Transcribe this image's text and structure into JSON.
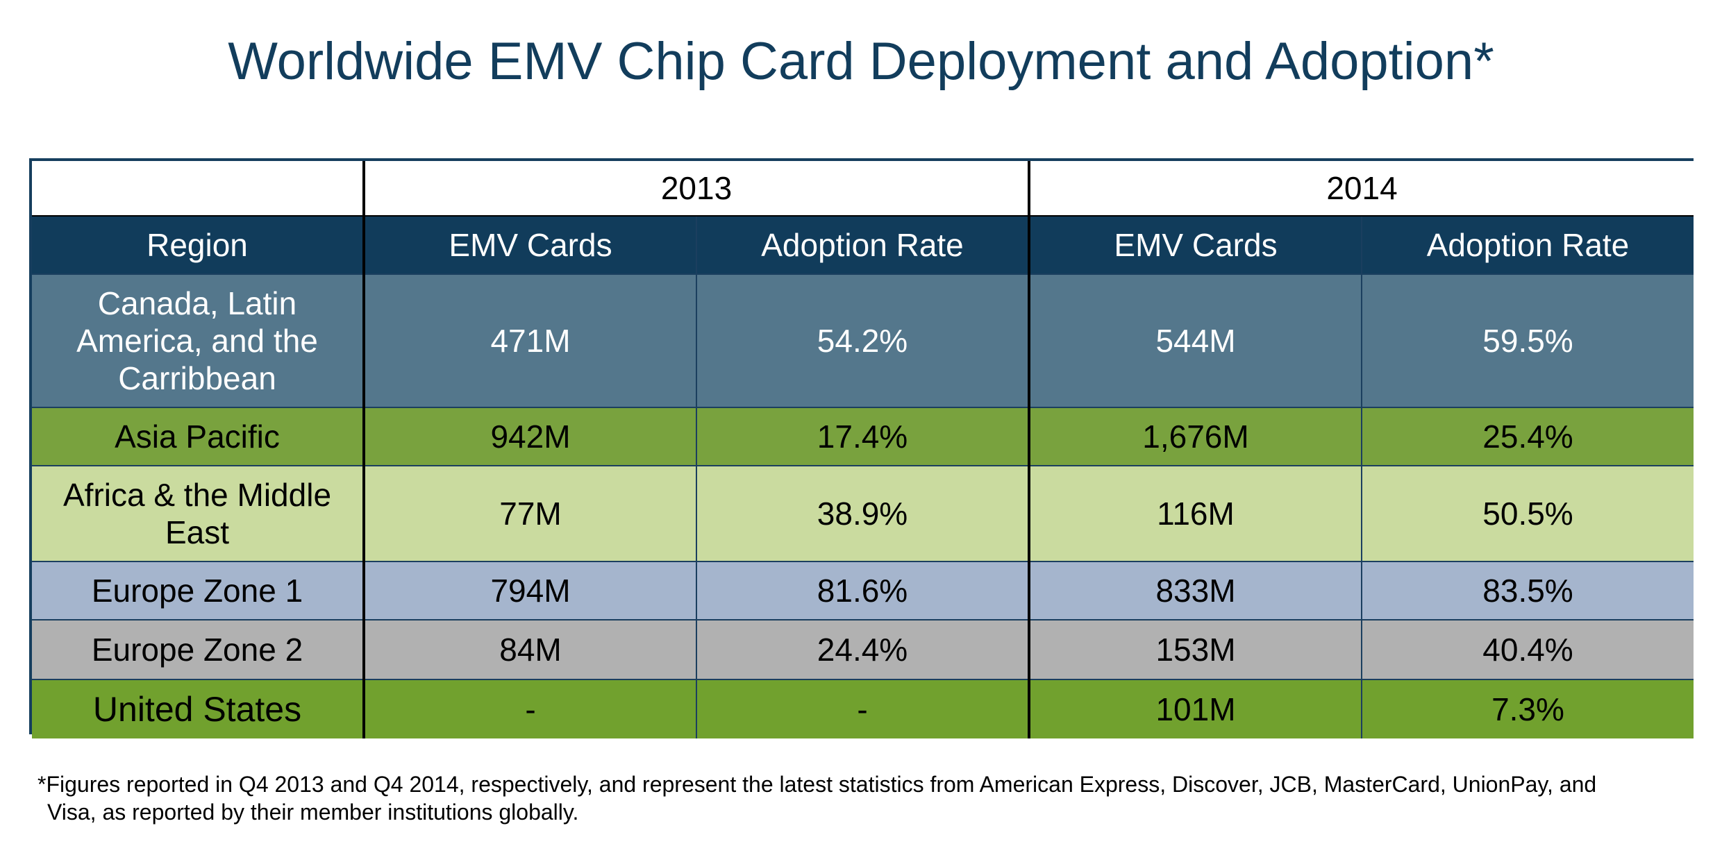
{
  "title": "Worldwide EMV Chip Card Deployment and Adoption*",
  "chart_data": {
    "type": "table",
    "title": "Worldwide EMV Chip Card Deployment and Adoption*",
    "years": [
      "2013",
      "2014"
    ],
    "columns": [
      "Region",
      "EMV Cards",
      "Adoption Rate",
      "EMV Cards",
      "Adoption Rate"
    ],
    "rows": [
      {
        "region": "Canada, Latin America, and the Carribbean",
        "cards_2013": "471M",
        "rate_2013": "54.2%",
        "cards_2014": "544M",
        "rate_2014": "59.5%",
        "color": "#54778c"
      },
      {
        "region": "Asia Pacific",
        "cards_2013": "942M",
        "rate_2013": "17.4%",
        "cards_2014": "1,676M",
        "rate_2014": "25.4%",
        "color": "#79a23e"
      },
      {
        "region": "Africa & the Middle East",
        "cards_2013": "77M",
        "rate_2013": "38.9%",
        "cards_2014": "116M",
        "rate_2014": "50.5%",
        "color": "#cadb9f"
      },
      {
        "region": "Europe Zone 1",
        "cards_2013": "794M",
        "rate_2013": "81.6%",
        "cards_2014": "833M",
        "rate_2014": "83.5%",
        "color": "#a5b5cd"
      },
      {
        "region": "Europe Zone 2",
        "cards_2013": "84M",
        "rate_2013": "24.4%",
        "cards_2014": "153M",
        "rate_2014": "40.4%",
        "color": "#b1b1b1"
      },
      {
        "region": "United States",
        "cards_2013": "-",
        "rate_2013": "-",
        "cards_2014": "101M",
        "rate_2014": "7.3%",
        "color": "#71a12e"
      }
    ]
  },
  "footnote": {
    "line1": "*Figures reported in Q4 2013 and Q4 2014, respectively, and represent the latest statistics from American Express, Discover, JCB, MasterCard, UnionPay, and",
    "line2": "Visa, as reported by their member institutions globally."
  },
  "colors": {
    "title": "#123d5c",
    "header_bg": "#113c5b",
    "border": "#163e5e"
  }
}
